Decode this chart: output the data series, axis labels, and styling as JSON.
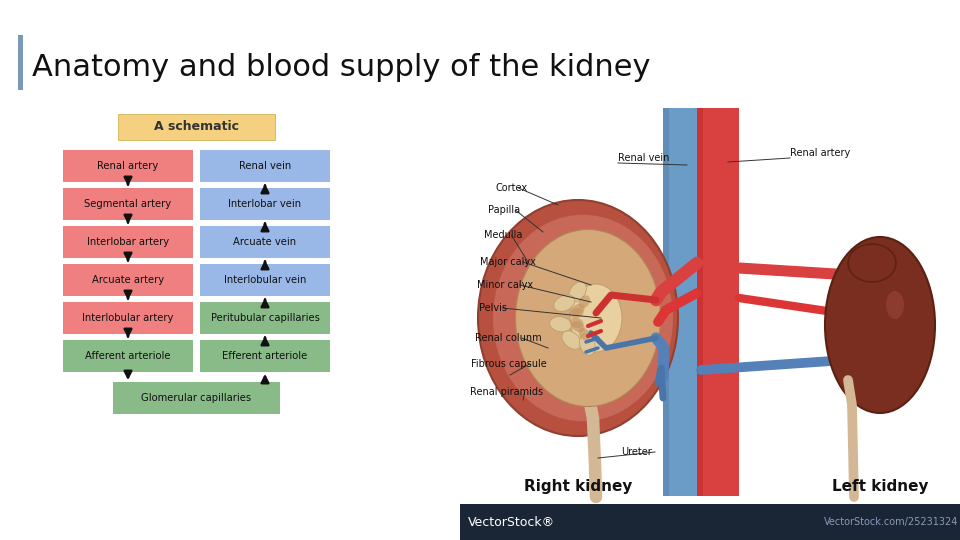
{
  "title": "Anatomy and blood supply of the kidney",
  "title_fontsize": 22,
  "title_color": "#111111",
  "bg_color": "#ffffff",
  "accent_bar_color": "#7899b8",
  "schematic_title": "A schematic",
  "schematic_title_bg": "#f5d080",
  "left_boxes": [
    {
      "label": "Renal artery",
      "color": "#f08080"
    },
    {
      "label": "Segmental artery",
      "color": "#f08080"
    },
    {
      "label": "Interlobar artery",
      "color": "#f08080"
    },
    {
      "label": "Arcuate artery",
      "color": "#f08080"
    },
    {
      "label": "Interlobular artery",
      "color": "#f08080"
    },
    {
      "label": "Afferent arteriole",
      "color": "#88bb88"
    }
  ],
  "right_boxes": [
    {
      "label": "Renal vein",
      "color": "#99b8e8"
    },
    {
      "label": "Interlobar vein",
      "color": "#99b8e8"
    },
    {
      "label": "Arcuate vein",
      "color": "#99b8e8"
    },
    {
      "label": "Interlobular vein",
      "color": "#99b8e8"
    },
    {
      "label": "Peritubular capillaries",
      "color": "#88bb88"
    },
    {
      "label": "Efferent arteriole",
      "color": "#88bb88"
    }
  ],
  "bottom_box": {
    "label": "Glomerular capillaries",
    "color": "#88bb88"
  },
  "vectorstock_bg": "#1a2535",
  "vectorstock_text": "VectorStock",
  "vectorstock_reg": "®",
  "vectorstock_url": "VectorStock.com/25231324",
  "anat_labels_left": [
    "Cortex",
    "Papilla",
    "Medulla",
    "Major calyx",
    "Minor calyx",
    "Pelvis",
    "Renal colunm",
    "Fibrous capsule",
    "Renal piramids"
  ],
  "anat_label_ureter": "Ureter",
  "anat_label_renal_vein": "Renal vein",
  "anat_label_renal_artery": "Renal artery",
  "right_kidney_label": "Right kidney",
  "left_kidney_label": "Left kidney"
}
